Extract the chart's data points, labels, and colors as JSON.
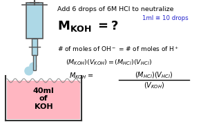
{
  "bg_color": "#ffffff",
  "title_text": "Add 6 drops of 6M HCl to neutralize",
  "note_text": "1ml ≅ 10 drops",
  "note_color": "#2222cc",
  "beaker_color": "#ffb6c1",
  "burette_color": "#add8e6",
  "beaker_label": "40ml\nof\nKOH",
  "text_color": "#000000"
}
